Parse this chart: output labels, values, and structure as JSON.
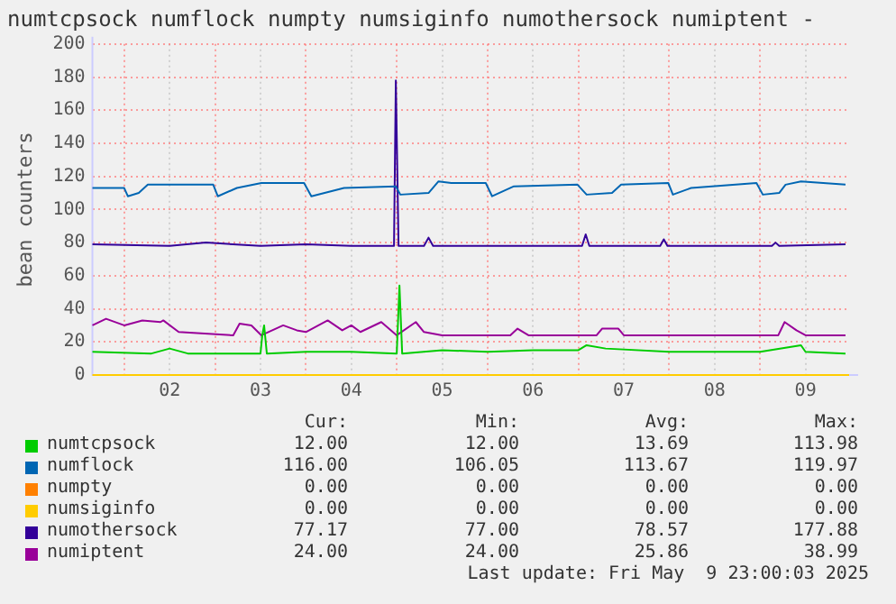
{
  "chart_data": {
    "type": "line",
    "title": "numtcpsock numflock numpty numsiginfo numothersock numiptent -",
    "ylabel": "bean counters",
    "xlim": [
      1.65,
      9.98
    ],
    "xticks": [
      {
        "value": 2,
        "label": null
      },
      {
        "value": 2.5,
        "label": "02"
      },
      {
        "value": 3,
        "label": null
      },
      {
        "value": 3.5,
        "label": "03"
      },
      {
        "value": 4,
        "label": null
      },
      {
        "value": 4.5,
        "label": "04"
      },
      {
        "value": 5,
        "label": null
      },
      {
        "value": 5.5,
        "label": "05"
      },
      {
        "value": 6,
        "label": null
      },
      {
        "value": 6.5,
        "label": "06"
      },
      {
        "value": 7,
        "label": null
      },
      {
        "value": 7.5,
        "label": "07"
      },
      {
        "value": 8,
        "label": null
      },
      {
        "value": 8.5,
        "label": "08"
      },
      {
        "value": 9,
        "label": null
      },
      {
        "value": 9.5,
        "label": "09"
      }
    ],
    "ylim": [
      0,
      200
    ],
    "yticks": [
      0,
      20,
      40,
      60,
      80,
      100,
      120,
      140,
      160,
      180,
      200
    ],
    "grid": true,
    "legend": "bottom",
    "series": [
      {
        "name": "numtcpsock",
        "color": "#00cc00",
        "x": [
          1.65,
          2.3,
          2.5,
          2.7,
          3.5,
          3.52,
          3.54,
          3.57,
          4.0,
          4.5,
          5.0,
          5.03,
          5.06,
          5.5,
          6.0,
          6.5,
          7.0,
          7.09,
          7.3,
          8.0,
          8.5,
          9.0,
          9.45,
          9.5,
          9.94
        ],
        "values": [
          14,
          13,
          16,
          13,
          13,
          24,
          30,
          13,
          14,
          14,
          13,
          54,
          13,
          15,
          14,
          15,
          15,
          18,
          16,
          14,
          14,
          14,
          18,
          14,
          13
        ]
      },
      {
        "name": "numflock",
        "color": "#0066b3",
        "x": [
          1.65,
          2.0,
          2.04,
          2.16,
          2.26,
          2.98,
          3.03,
          3.24,
          3.51,
          3.98,
          4.06,
          4.42,
          4.99,
          5.04,
          5.35,
          5.46,
          5.6,
          5.98,
          6.05,
          6.29,
          6.99,
          7.09,
          7.37,
          7.47,
          7.99,
          8.04,
          8.24,
          8.96,
          9.03,
          9.21,
          9.28,
          9.45,
          9.94
        ],
        "values": [
          113,
          113,
          108,
          110,
          115,
          115,
          108,
          113,
          116,
          116,
          108,
          113,
          114,
          109,
          110,
          117,
          116,
          116,
          108,
          114,
          115,
          109,
          110,
          115,
          116,
          109,
          113,
          116,
          109,
          110,
          115,
          117,
          115
        ]
      },
      {
        "name": "numpty",
        "color": "#ff8000"
      },
      {
        "name": "numsiginfo",
        "color": "#ffcc00",
        "x": [
          1.65,
          9.98
        ],
        "values": [
          0,
          0
        ]
      },
      {
        "name": "numothersock",
        "color": "#330099",
        "x": [
          1.65,
          2.5,
          2.9,
          3.5,
          4.0,
          4.5,
          4.97,
          4.99,
          5.02,
          5.3,
          5.35,
          5.4,
          6.0,
          7.04,
          7.08,
          7.12,
          7.9,
          7.94,
          7.98,
          9.13,
          9.17,
          9.21,
          9.94
        ],
        "values": [
          79,
          78,
          80,
          78,
          79,
          78,
          78,
          178,
          78,
          78,
          83,
          78,
          78,
          78,
          85,
          78,
          78,
          82,
          78,
          78,
          80,
          78,
          79
        ]
      },
      {
        "name": "numiptent",
        "color": "#990099",
        "x": [
          1.65,
          1.8,
          2.0,
          2.2,
          2.4,
          2.43,
          2.6,
          3.2,
          3.27,
          3.4,
          3.51,
          3.75,
          3.9,
          4.0,
          4.24,
          4.4,
          4.5,
          4.6,
          4.83,
          5.0,
          5.21,
          5.3,
          5.5,
          6.25,
          6.33,
          6.45,
          7.2,
          7.26,
          7.44,
          7.5,
          9.2,
          9.27,
          9.4,
          9.5,
          9.94
        ],
        "values": [
          30,
          34,
          30,
          33,
          32,
          33,
          26,
          24,
          31,
          30,
          24,
          30,
          27,
          26,
          33,
          27,
          30,
          26,
          32,
          24,
          32,
          26,
          24,
          24,
          28,
          24,
          24,
          28,
          28,
          24,
          24,
          32,
          27,
          24,
          24
        ]
      }
    ],
    "annotations": [
      "Cur:",
      "Min:",
      "Avg:",
      "Max:",
      "12.00",
      "12.00",
      "13.69",
      "113.98",
      "116.00",
      "106.05",
      "113.67",
      "119.97",
      "0.00",
      "0.00",
      "0.00",
      "0.00",
      "0.00",
      "0.00",
      "0.00",
      "0.00",
      "77.17",
      "77.00",
      "78.57",
      "177.88",
      "24.00",
      "24.00",
      "25.86",
      "38.99",
      "Last update: Fri May  9 23:00:03 2025"
    ]
  }
}
